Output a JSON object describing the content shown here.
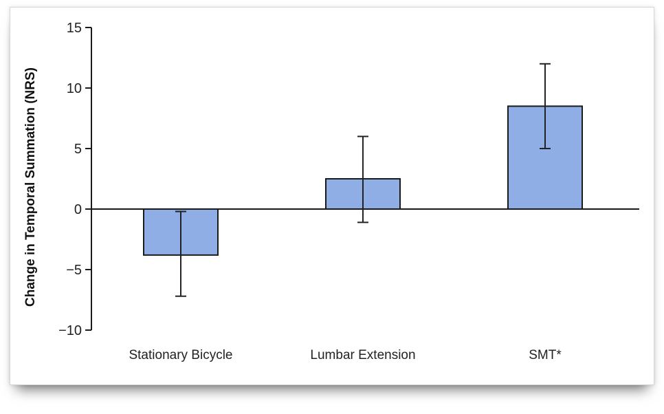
{
  "chart_data": {
    "type": "bar",
    "categories": [
      "Stationary Bicycle",
      "Lumbar Extension",
      "SMT*"
    ],
    "values": [
      -3.8,
      2.5,
      8.5
    ],
    "error": {
      "lower": [
        -7.2,
        -1.1,
        5.0
      ],
      "upper": [
        -0.2,
        6.0,
        12.0
      ]
    },
    "title": "",
    "xlabel": "",
    "ylabel": "Change in Temporal Summation (NRS)",
    "ylim": [
      -10,
      15
    ],
    "yticks": [
      15,
      10,
      5,
      0,
      -5,
      -10
    ],
    "ytick_labels": [
      "15",
      "10",
      "5",
      "0",
      "−5",
      "−10"
    ],
    "grid": false,
    "legend": "none",
    "bar_color": "#8eaee5",
    "bar_edge_color": "#1a1a1a",
    "axis_color": "#1a1a1a"
  }
}
